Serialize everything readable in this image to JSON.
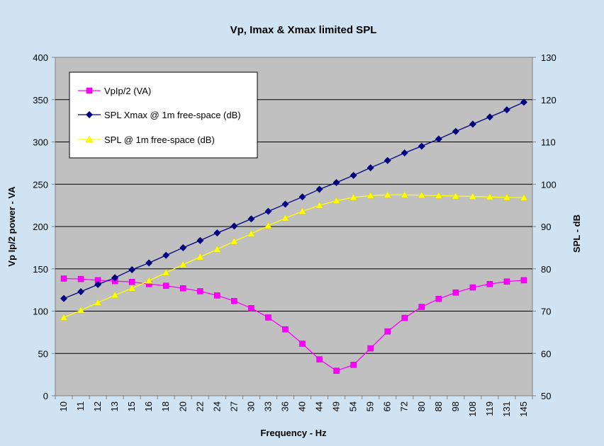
{
  "chart_data": {
    "type": "line",
    "title": "Vp, Imax & Xmax limited SPL",
    "xlabel": "Frequency - Hz",
    "ylabel": "Vp Ip/2 power - VA",
    "y2label": "SPL - dB",
    "categories": [
      "10",
      "11",
      "12",
      "13",
      "15",
      "16",
      "18",
      "20",
      "22",
      "24",
      "27",
      "30",
      "33",
      "36",
      "40",
      "44",
      "49",
      "54",
      "59",
      "66",
      "72",
      "80",
      "88",
      "98",
      "108",
      "119",
      "131",
      "145"
    ],
    "ylim": [
      0,
      400
    ],
    "yticks": [
      0,
      50,
      100,
      150,
      200,
      250,
      300,
      350,
      400
    ],
    "y2lim": [
      50,
      130
    ],
    "y2ticks": [
      50,
      60,
      70,
      80,
      90,
      100,
      110,
      120,
      130
    ],
    "grid": true,
    "legend_position": "top-left",
    "plot_background": "#c0c0c0",
    "series": [
      {
        "name": "VpIp/2 (VA)",
        "axis": "left",
        "color": "#ff00ff",
        "marker": "square",
        "values": [
          138.5,
          138,
          136.5,
          135.5,
          134.5,
          132,
          130,
          127,
          123.5,
          118.5,
          112,
          103.5,
          92.5,
          78.5,
          61.5,
          43,
          29.5,
          36.5,
          56,
          76,
          92,
          105,
          114.5,
          122,
          128,
          132,
          135,
          136.5
        ]
      },
      {
        "name": "SPL Xmax @ 1m free-space (dB)",
        "axis": "right",
        "color": "#000080",
        "marker": "diamond",
        "values": [
          73,
          74.6,
          76.3,
          77.9,
          79.8,
          81.4,
          83.2,
          85,
          86.7,
          88.5,
          90.1,
          91.8,
          93.6,
          95.3,
          97,
          98.8,
          100.4,
          102.1,
          103.9,
          105.6,
          107.4,
          109,
          110.7,
          112.5,
          114.2,
          115.9,
          117.6,
          119.4
        ]
      },
      {
        "name": "SPL @ 1m free-space (dB)",
        "axis": "right",
        "color": "#ffff00",
        "marker": "triangle",
        "values": [
          68.5,
          70.2,
          72,
          73.8,
          75.4,
          77.2,
          79.1,
          81,
          82.8,
          84.6,
          86.5,
          88.3,
          90.2,
          92,
          93.6,
          95,
          96.1,
          96.9,
          97.3,
          97.5,
          97.5,
          97.4,
          97.3,
          97.2,
          97.1,
          97,
          96.9,
          96.8
        ]
      }
    ]
  }
}
